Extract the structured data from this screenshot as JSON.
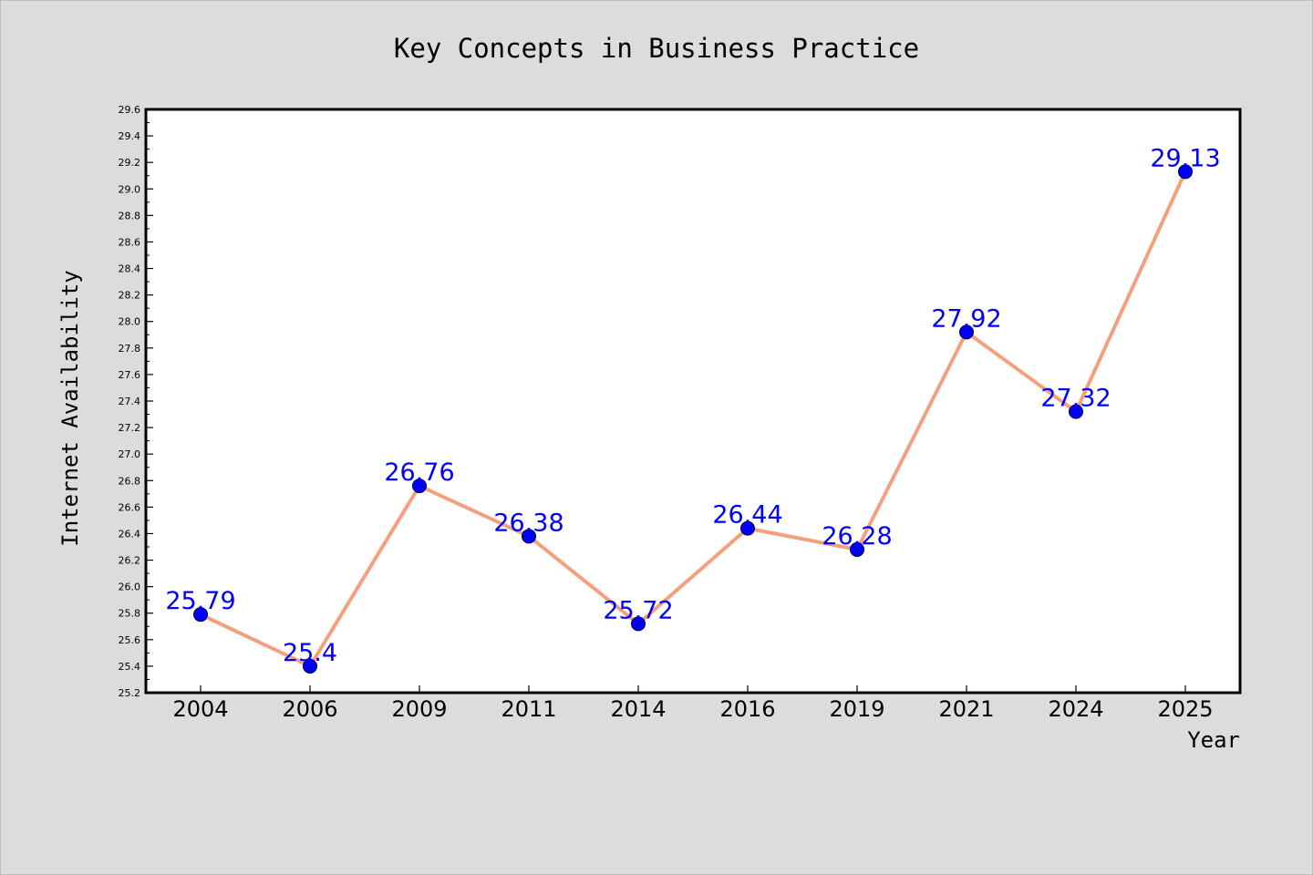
{
  "chart_data": {
    "type": "line",
    "title": "Key Concepts in Business Practice",
    "xlabel": "Year",
    "ylabel": "Internet Availability",
    "categories": [
      "2004",
      "2006",
      "2009",
      "2011",
      "2014",
      "2016",
      "2019",
      "2021",
      "2024",
      "2025"
    ],
    "values": [
      25.79,
      25.4,
      26.76,
      26.38,
      25.72,
      26.44,
      26.28,
      27.92,
      27.32,
      29.13
    ],
    "data_labels": [
      "25.79",
      "25.4",
      "26.76",
      "26.38",
      "25.72",
      "26.44",
      "26.28",
      "27.92",
      "27.32",
      "29.13"
    ],
    "ylim": [
      25.2,
      29.6
    ],
    "yticks": [
      "25.2",
      "25.4",
      "25.6",
      "25.8",
      "26.0",
      "26.2",
      "26.4",
      "26.6",
      "26.8",
      "27.0",
      "27.2",
      "27.4",
      "27.6",
      "27.8",
      "28.0",
      "28.2",
      "28.4",
      "28.6",
      "28.8",
      "29.0",
      "29.2",
      "29.4",
      "29.6"
    ],
    "grid": false,
    "legend": "none",
    "colors": {
      "line": "#f4a07c",
      "marker": "#0000ff",
      "label": "#0000ff",
      "background": "#dcdcdc",
      "plot_background": "#ffffff"
    }
  }
}
